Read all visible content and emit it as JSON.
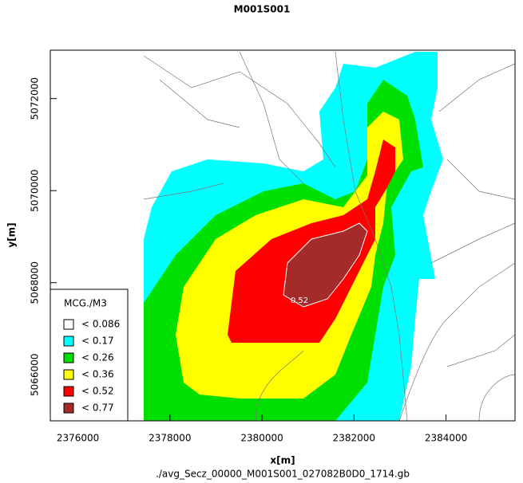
{
  "chart_data": {
    "type": "contour",
    "title": "M001S001",
    "x_label": "x[m]",
    "y_label": "y[m]",
    "footer": "./avg_Secz_00000_M001S001_027082B0D0_1714.gb",
    "xlim": [
      2375400,
      2385500
    ],
    "ylim": [
      5065000,
      5073050
    ],
    "xticks": [
      2376000,
      2378000,
      2380000,
      2382000,
      2384000
    ],
    "yticks": [
      5066000,
      5068000,
      5070000,
      5072000
    ],
    "legend": {
      "title": "MCG./M3",
      "items": [
        {
          "value": 0.086,
          "label": "< 0.086",
          "color": "#ffffff"
        },
        {
          "value": 0.17,
          "label": "< 0.17",
          "color": "#00ffff"
        },
        {
          "value": 0.26,
          "label": "< 0.26",
          "color": "#00e000"
        },
        {
          "value": 0.36,
          "label": "< 0.36",
          "color": "#ffff00"
        },
        {
          "value": 0.52,
          "label": "< 0.52",
          "color": "#ff0000"
        },
        {
          "value": 0.77,
          "label": "< 0.77",
          "color": "#a52a2a"
        }
      ]
    },
    "contour_label": "0.52"
  }
}
